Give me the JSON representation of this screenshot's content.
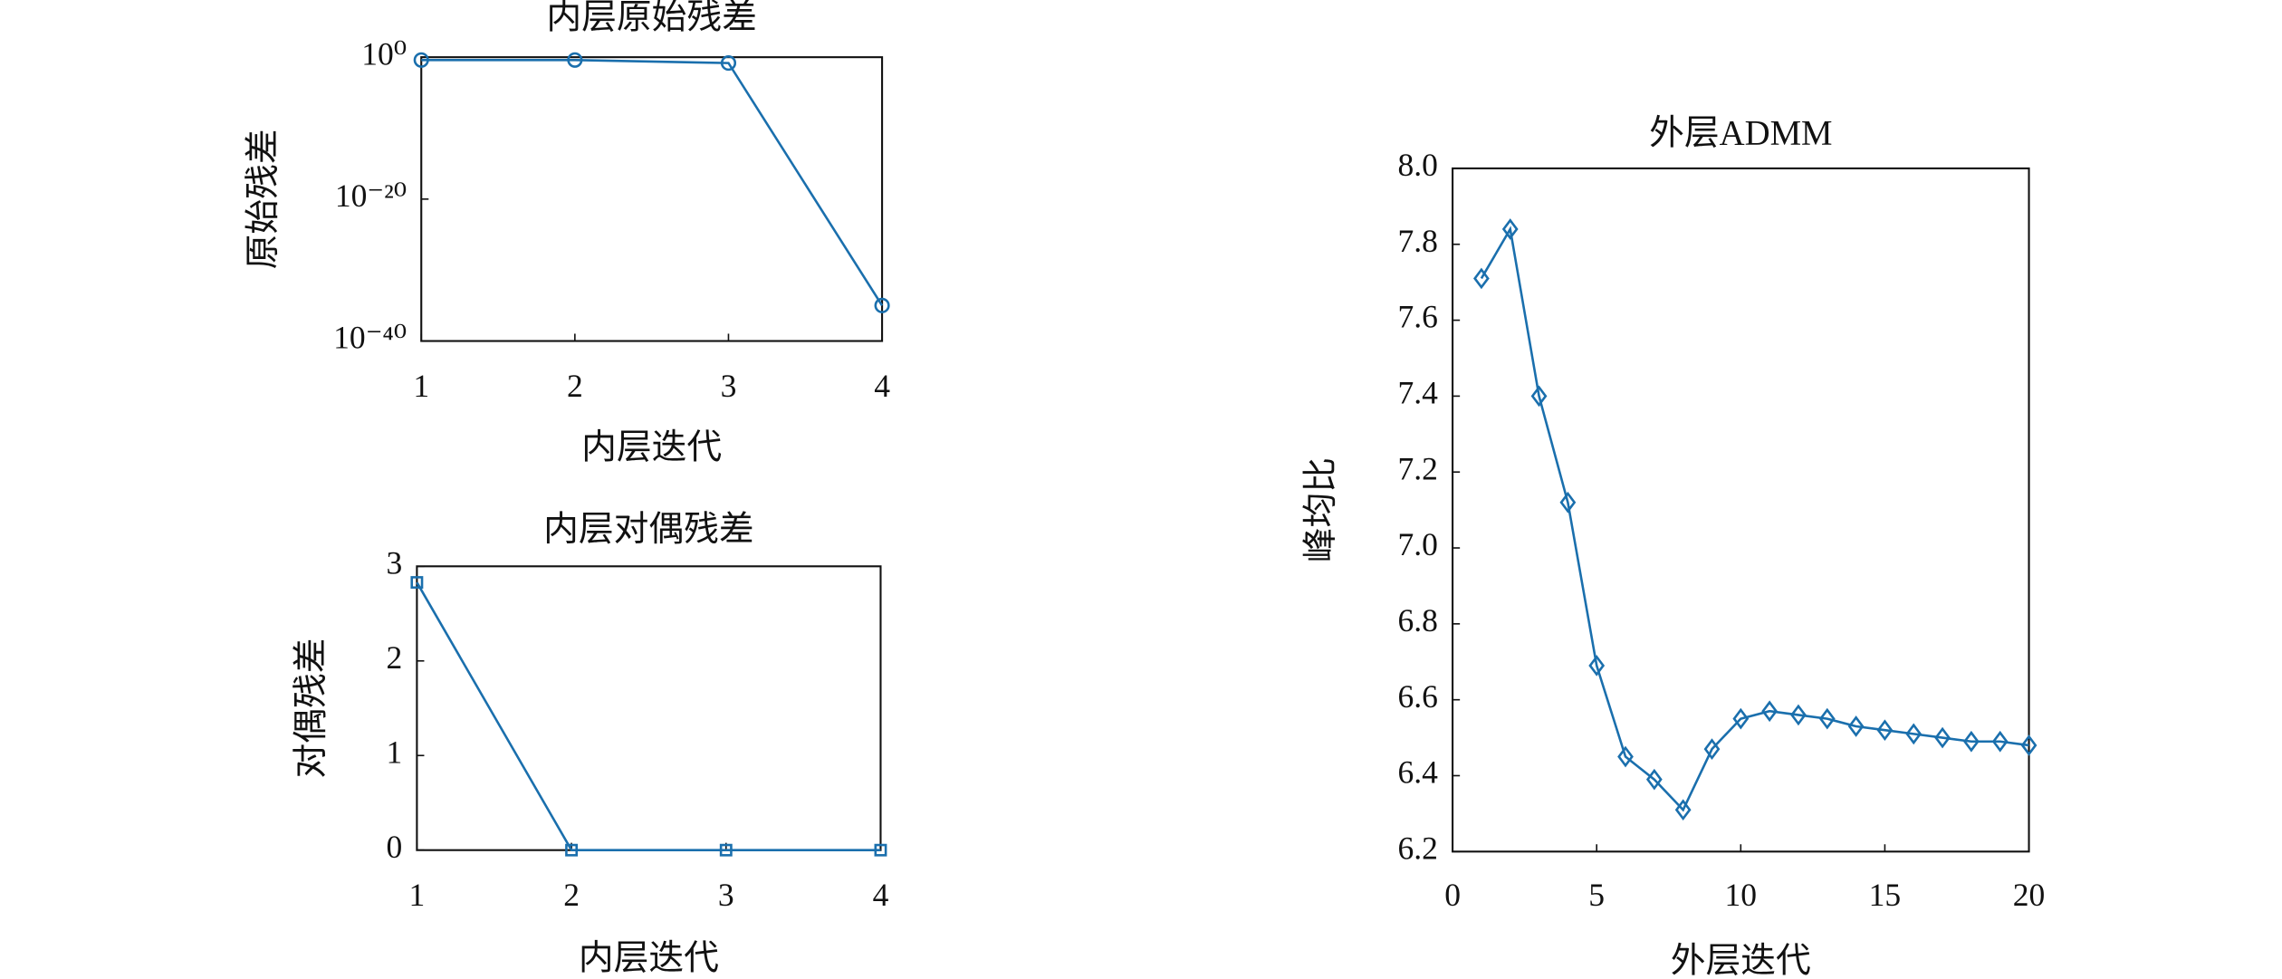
{
  "chart_data": [
    {
      "type": "line",
      "title": "内层原始残差",
      "xlabel": "内层迭代",
      "ylabel": "原始残差",
      "x": [
        1,
        2,
        3,
        4
      ],
      "values": [
        0.4,
        0.4,
        0.15,
        1e-35
      ],
      "color": "#1a6fad",
      "marker": "circle",
      "xlim": [
        1,
        4
      ],
      "xticks": [
        1,
        2,
        3,
        4
      ],
      "yscale": "log",
      "ylim": [
        1e-40,
        1
      ],
      "yticks": [
        {
          "value": 1e-40,
          "label": "10⁻⁴⁰"
        },
        {
          "value": 1e-20,
          "label": "10⁻²⁰"
        },
        {
          "value": 1,
          "label": "10⁰"
        }
      ]
    },
    {
      "type": "line",
      "title": "内层对偶残差",
      "xlabel": "内层迭代",
      "ylabel": "对偶残差",
      "x": [
        1,
        2,
        3,
        4
      ],
      "values": [
        2.83,
        0,
        0,
        0
      ],
      "color": "#1a6fad",
      "marker": "square",
      "xlim": [
        1,
        4
      ],
      "xticks": [
        1,
        2,
        3,
        4
      ],
      "ylim": [
        0,
        3
      ],
      "yticks": [
        0,
        1,
        2,
        3
      ]
    },
    {
      "type": "line",
      "title": "外层ADMM",
      "xlabel": "外层迭代",
      "ylabel": "峰均比",
      "x": [
        1,
        2,
        3,
        4,
        5,
        6,
        7,
        8,
        9,
        10,
        11,
        12,
        13,
        14,
        15,
        16,
        17,
        18,
        19,
        20
      ],
      "values": [
        7.71,
        7.84,
        7.4,
        7.12,
        6.69,
        6.45,
        6.39,
        6.31,
        6.47,
        6.55,
        6.57,
        6.56,
        6.55,
        6.53,
        6.52,
        6.51,
        6.5,
        6.49,
        6.49,
        6.48
      ],
      "color": "#1a6fad",
      "marker": "diamond",
      "xlim": [
        0,
        20
      ],
      "xticks": [
        0,
        5,
        10,
        15,
        20
      ],
      "ylim": [
        6.2,
        8.0
      ],
      "yticks": [
        6.2,
        6.4,
        6.6,
        6.8,
        {
          "value": 7,
          "label": "7.0"
        },
        7.2,
        7.4,
        7.6,
        7.8,
        {
          "value": 8,
          "label": "8.0"
        }
      ]
    }
  ]
}
